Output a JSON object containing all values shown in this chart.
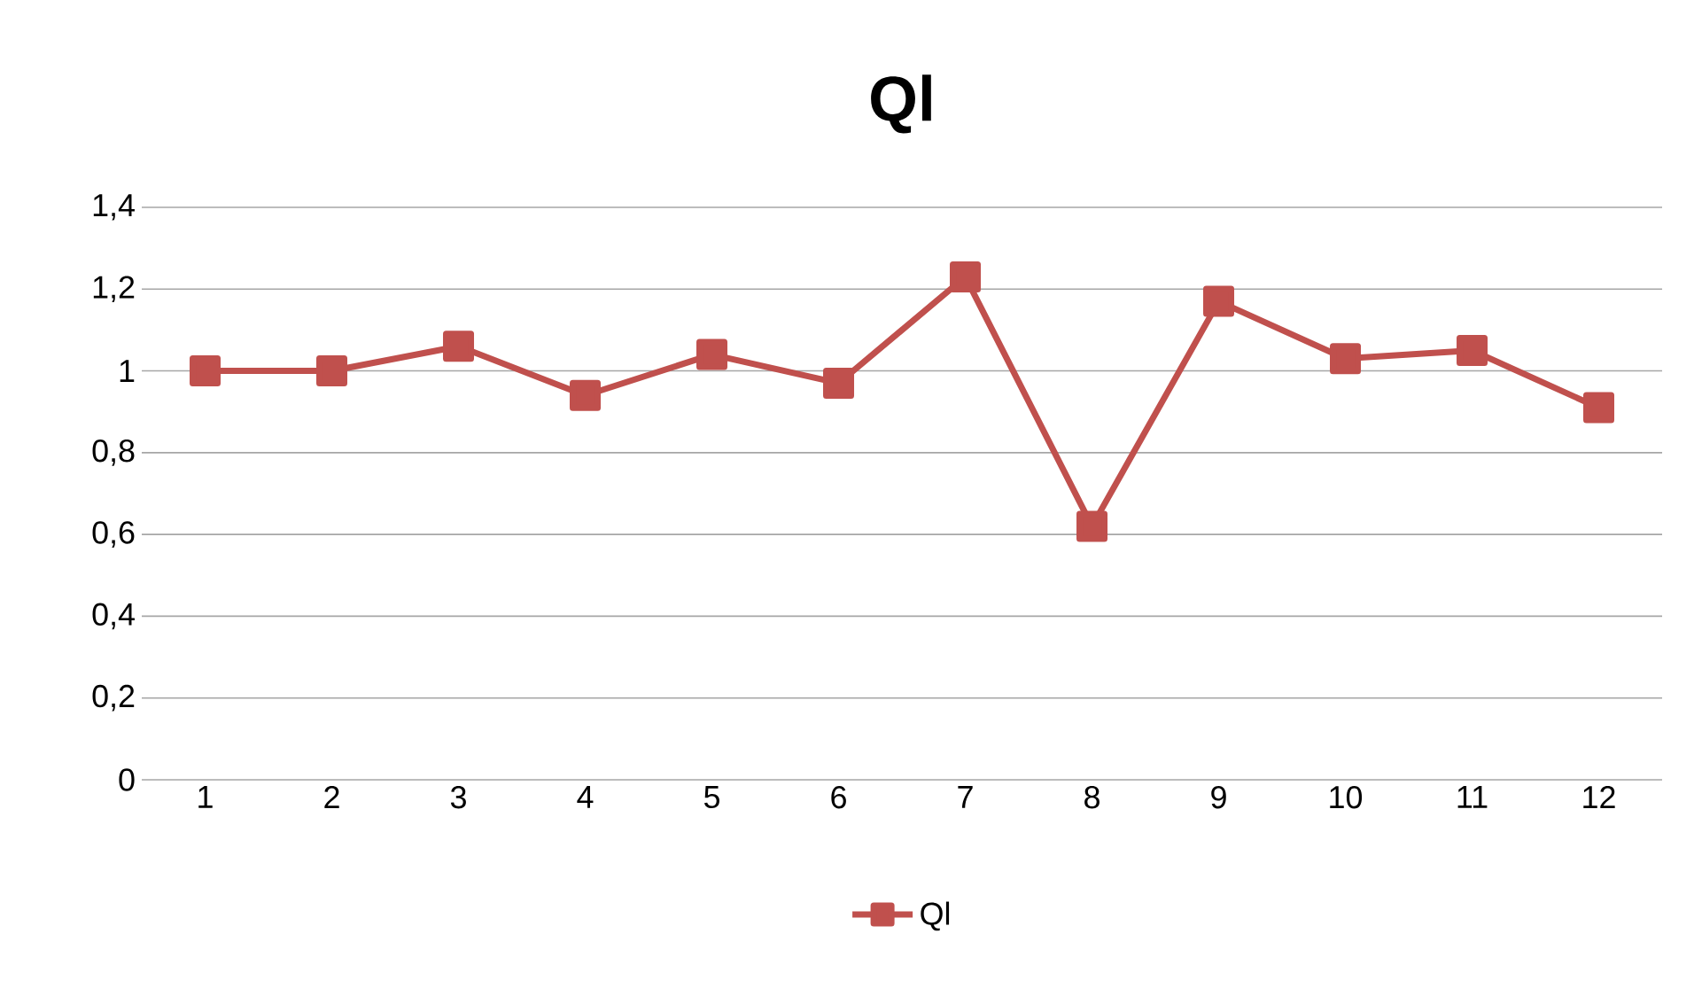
{
  "chart_data": {
    "type": "line",
    "title": "Ql",
    "categories": [
      "1",
      "2",
      "3",
      "4",
      "5",
      "6",
      "7",
      "8",
      "9",
      "10",
      "11",
      "12"
    ],
    "series": [
      {
        "name": "Ql",
        "color": "#c0504d",
        "values": [
          1.0,
          1.0,
          1.06,
          0.94,
          1.04,
          0.97,
          1.23,
          0.62,
          1.17,
          1.03,
          1.05,
          0.91
        ]
      }
    ],
    "ylim": [
      0,
      1.4
    ],
    "yticks": [
      0,
      {
        "value": 0.2,
        "label": "0,2"
      },
      {
        "value": 0.4,
        "label": "0,4"
      },
      {
        "value": 0.6,
        "label": "0,6"
      },
      {
        "value": 0.8,
        "label": "0,8"
      },
      1,
      {
        "value": 1.2,
        "label": "1,2"
      },
      {
        "value": 1.4,
        "label": "1,4"
      }
    ],
    "grid": "y",
    "legend": "bottom",
    "marker": "square",
    "line_style": "solid"
  }
}
